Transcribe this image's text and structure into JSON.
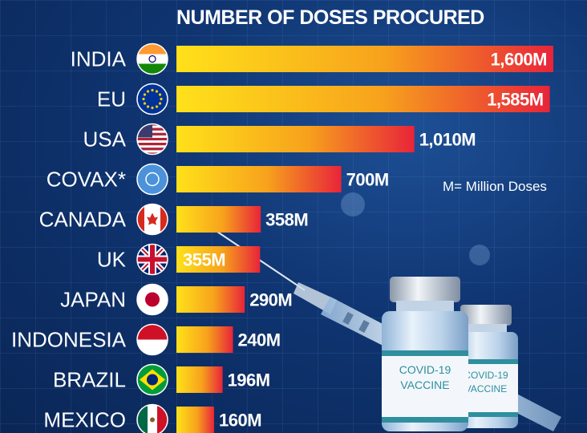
{
  "title": "NUMBER OF DOSES PROCURED",
  "note": "M= Million Doses",
  "vial_labels": {
    "front": [
      "COVID-19",
      "VACCINE"
    ],
    "back": [
      "COVID-19",
      "VACCINE"
    ]
  },
  "colors": {
    "bar_start": "#ffe11a",
    "bar_end": "#e8243a",
    "background": "#0f3470",
    "text": "#ffffff"
  },
  "chart_data": {
    "type": "bar",
    "orientation": "horizontal",
    "title": "NUMBER OF DOSES PROCURED",
    "categories": [
      "INDIA",
      "EU",
      "USA",
      "COVAX*",
      "CANADA",
      "UK",
      "JAPAN",
      "INDONESIA",
      "BRAZIL",
      "MEXICO"
    ],
    "values": [
      1600,
      1585,
      1010,
      700,
      358,
      355,
      290,
      240,
      196,
      160
    ],
    "value_labels": [
      "1,600M",
      "1,585M",
      "1,010M",
      "700M",
      "358M",
      "355M",
      "290M",
      "240M",
      "196M",
      "160M"
    ],
    "flag_icons": [
      "india-flag-icon",
      "eu-flag-icon",
      "usa-flag-icon",
      "un-flag-icon",
      "canada-flag-icon",
      "uk-flag-icon",
      "japan-flag-icon",
      "indonesia-flag-icon",
      "brazil-flag-icon",
      "mexico-flag-icon"
    ],
    "unit": "M= Million Doses",
    "xlim": [
      0,
      1600
    ],
    "grid": false
  }
}
